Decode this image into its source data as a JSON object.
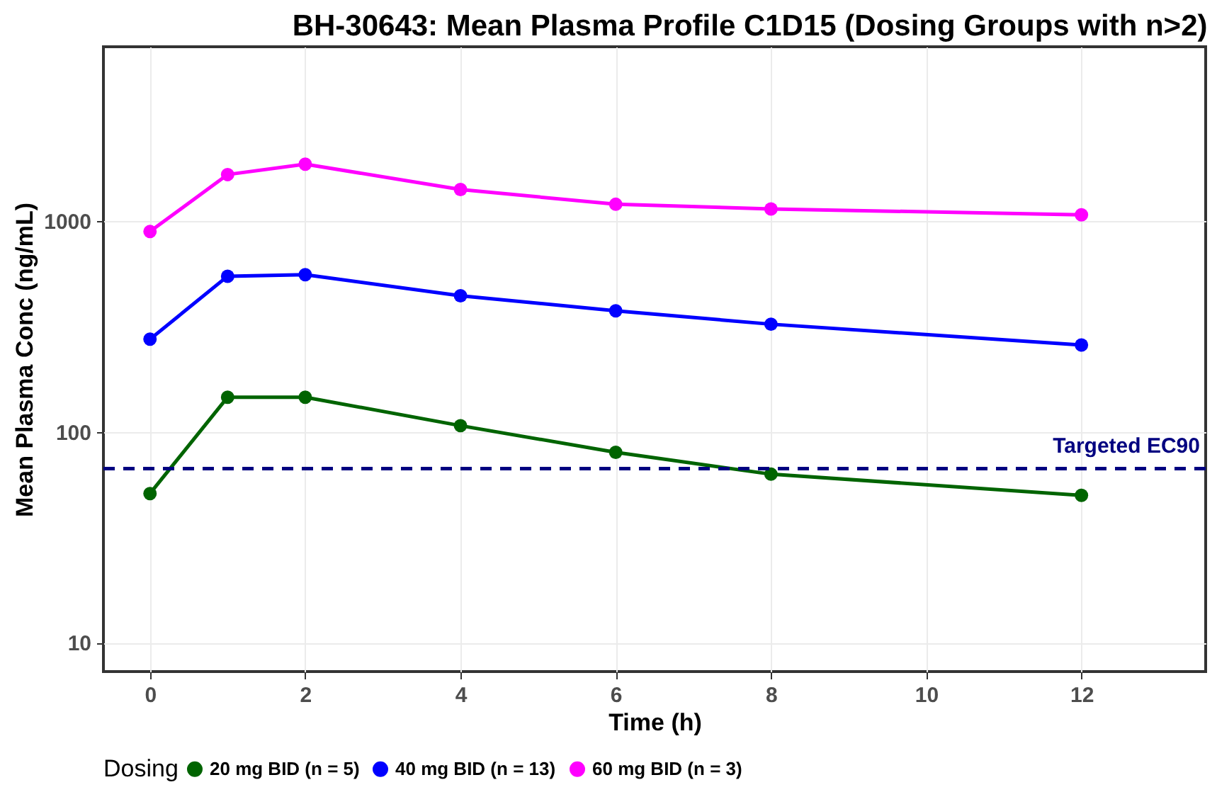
{
  "chart_data": {
    "type": "line",
    "title": "BH-30643: Mean Plasma Profile C1D15 (Dosing Groups with n>2)",
    "xlabel": "Time (h)",
    "ylabel": "Mean Plasma Conc (ng/mL)",
    "legend_title": "Dosing",
    "x": [
      0,
      1,
      2,
      4,
      6,
      8,
      12
    ],
    "series": [
      {
        "name": "20 mg BID (n = 5)",
        "color": "#006400",
        "values": [
          51,
          146,
          146,
          107,
          80,
          63,
          50
        ]
      },
      {
        "name": "40 mg BID (n = 13)",
        "color": "#0000ff",
        "values": [
          275,
          547,
          556,
          442,
          375,
          324,
          258
        ]
      },
      {
        "name": "60 mg BID (n = 3)",
        "color": "#ff00ff",
        "values": [
          891,
          1660,
          1860,
          1410,
          1200,
          1140,
          1070
        ]
      }
    ],
    "xlim": [
      -0.6,
      13.6
    ],
    "xticks": [
      0,
      2,
      4,
      6,
      8,
      10,
      12
    ],
    "ylim": [
      7.3,
      6700
    ],
    "yticks": [
      10,
      100,
      1000
    ],
    "log": "y",
    "ref_lines": [
      {
        "axis": "y",
        "value": 67,
        "label": "Targeted EC90",
        "color": "#000080",
        "line_style": "dashed"
      }
    ],
    "grid": true,
    "legend": "bottom",
    "marker": "circle",
    "line_style": "solid"
  }
}
